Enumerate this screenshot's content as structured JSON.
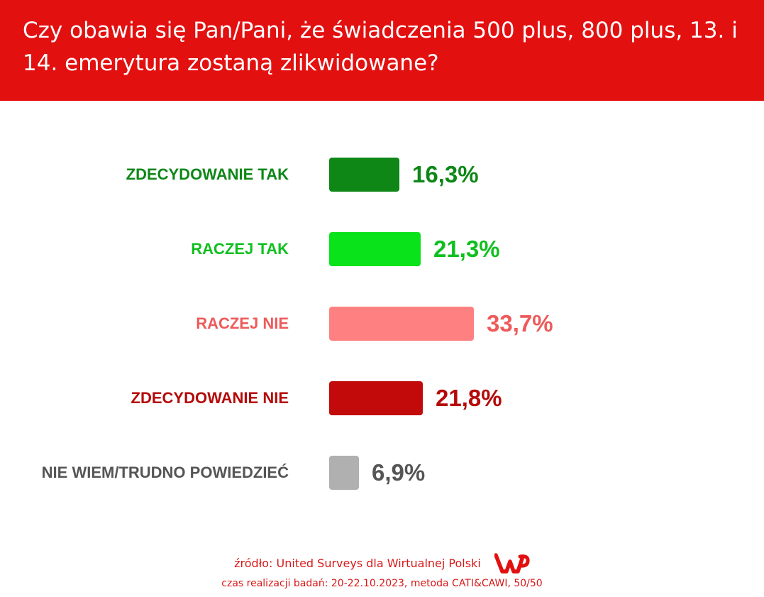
{
  "header": {
    "title": "Czy obawia się Pan/Pani, że świadczenia 500 plus, 800 plus, 13. i 14. emerytura zostaną zlikwidowane?"
  },
  "chart_data": {
    "type": "bar",
    "orientation": "horizontal",
    "title": "Czy obawia się Pan/Pani, że świadczenia 500 plus, 800 plus, 13. i 14. emerytura zostaną zlikwidowane?",
    "categories": [
      "ZDECYDOWANIE TAK",
      "RACZEJ TAK",
      "RACZEJ NIE",
      "ZDECYDOWANIE NIE",
      "NIE WIEM/TRUDNO POWIEDZIEĆ"
    ],
    "values": [
      16.3,
      21.3,
      33.7,
      21.8,
      6.9
    ],
    "value_labels": [
      "16,3%",
      "21,3%",
      "33,7%",
      "21,8%",
      "6,9%"
    ],
    "colors": [
      "#0e8717",
      "#08e31a",
      "#ff8080",
      "#c20a0a",
      "#b0b0b0"
    ],
    "label_colors": [
      "#0e8717",
      "#0fbf1f",
      "#ee5a5a",
      "#b50a0a",
      "#555555"
    ],
    "unit": "%",
    "xlim": [
      0,
      100
    ],
    "grid": false,
    "legend": "none"
  },
  "footer": {
    "source": "źródło: United Surveys dla Wirtualnej Polski",
    "method": "czas realizacji badań: 20-22.10.2023, metoda CATI&CAWI, 50/50",
    "logo_color": "#e31010"
  }
}
